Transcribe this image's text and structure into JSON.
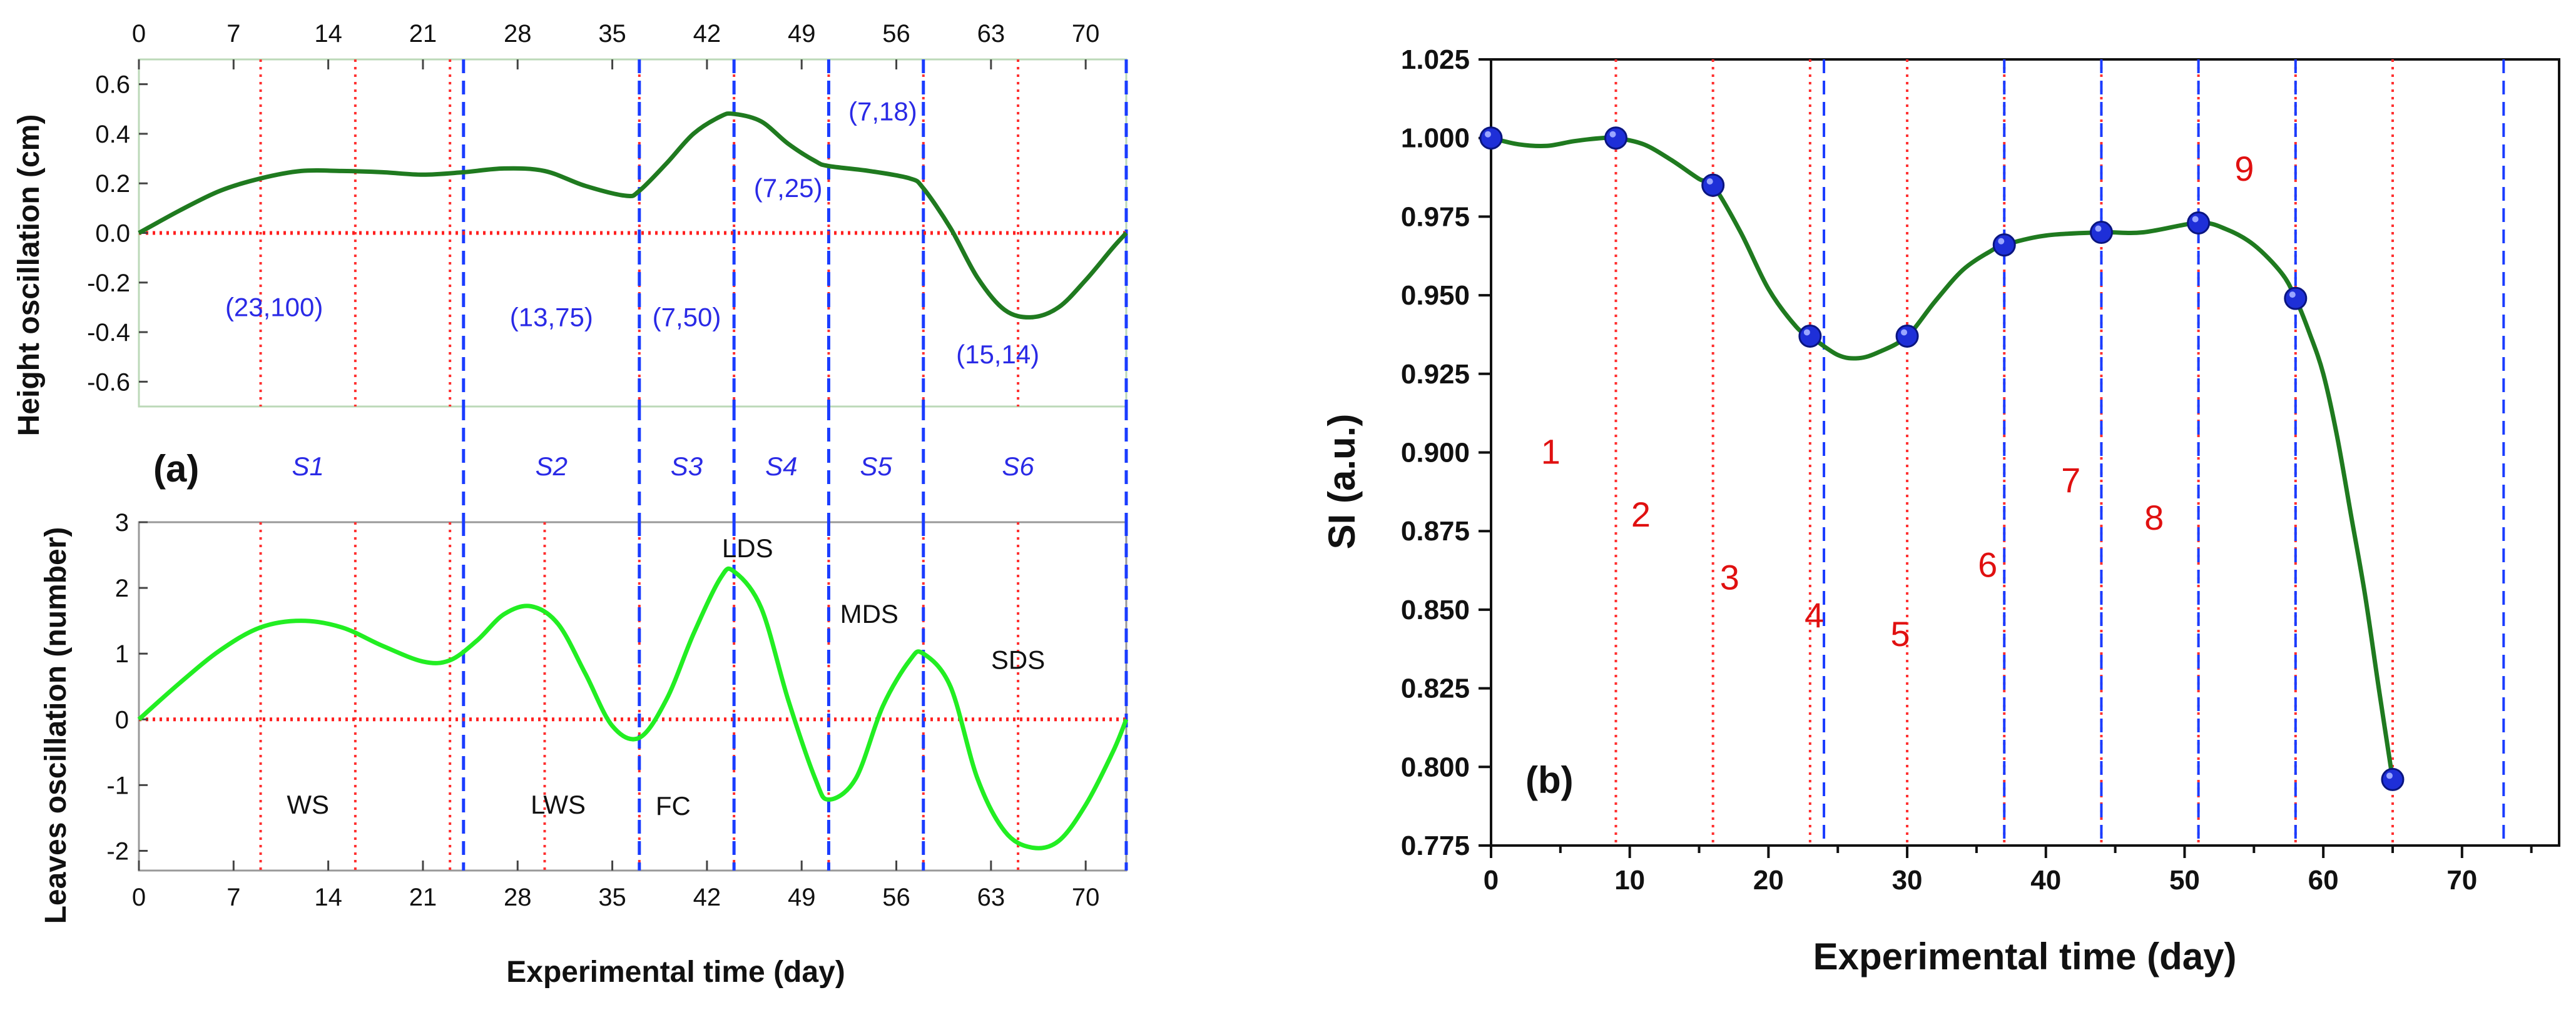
{
  "chart_data": [
    {
      "id": "height",
      "type": "line",
      "panel": "(a)",
      "ylabel": "Height oscillation (cm)",
      "xlabel": "",
      "xlim": [
        0,
        73
      ],
      "ylim": [
        -0.7,
        0.7
      ],
      "top_xticks": [
        0,
        7,
        14,
        21,
        28,
        35,
        42,
        49,
        56,
        63,
        70
      ],
      "yticks": [
        -0.6,
        -0.4,
        -0.2,
        0.0,
        0.2,
        0.4,
        0.6
      ],
      "ytick_labels": [
        "-0.6",
        "-0.4",
        "-0.2",
        "0.0",
        "0.2",
        "0.4",
        "0.6"
      ],
      "series": [
        {
          "name": "Height oscillation",
          "color": "#1f7a1f",
          "x": [
            0,
            3,
            6,
            9,
            12,
            15,
            18,
            21,
            24,
            27,
            30,
            33,
            36,
            37,
            39,
            41,
            43,
            44,
            46,
            48,
            50,
            51,
            54,
            57,
            58,
            60,
            62,
            64,
            66,
            68,
            70,
            72,
            73
          ],
          "y": [
            0.0,
            0.09,
            0.17,
            0.22,
            0.25,
            0.25,
            0.245,
            0.235,
            0.245,
            0.26,
            0.25,
            0.19,
            0.15,
            0.17,
            0.28,
            0.4,
            0.47,
            0.48,
            0.45,
            0.36,
            0.29,
            0.27,
            0.25,
            0.22,
            0.18,
            0.02,
            -0.18,
            -0.31,
            -0.34,
            -0.3,
            -0.19,
            -0.06,
            0.0
          ]
        }
      ],
      "vlines_red": [
        9,
        16,
        23,
        37,
        44,
        51,
        58,
        65
      ],
      "vlines_blue": [
        24,
        37,
        44,
        51,
        58,
        73
      ],
      "annotations": [
        {
          "text": "(23,100)",
          "x": 10,
          "y": -0.3
        },
        {
          "text": "(13,75)",
          "x": 30.5,
          "y": -0.34
        },
        {
          "text": "(7,50)",
          "x": 40.5,
          "y": -0.34
        },
        {
          "text": "(7,25)",
          "x": 48,
          "y": 0.18
        },
        {
          "text": "(7,18)",
          "x": 55,
          "y": 0.49
        },
        {
          "text": "(15,14)",
          "x": 63.5,
          "y": -0.49
        }
      ]
    },
    {
      "id": "leaves",
      "type": "line",
      "ylabel": "Leaves oscillation (number)",
      "xlabel": "Experimental time (day)",
      "xlim": [
        0,
        73
      ],
      "ylim": [
        -2.3,
        3
      ],
      "xticks": [
        0,
        7,
        14,
        21,
        28,
        35,
        42,
        49,
        56,
        63,
        70
      ],
      "yticks": [
        -2,
        -1,
        0,
        1,
        2,
        3
      ],
      "ytick_labels": [
        "-2",
        "-1",
        "0",
        "1",
        "2",
        "3"
      ],
      "series": [
        {
          "name": "Leaves oscillation",
          "color": "#22ee22",
          "x": [
            0,
            3,
            6,
            9,
            12,
            15,
            18,
            21,
            23,
            25,
            27,
            29,
            31,
            33,
            35,
            37,
            39,
            41,
            43,
            44,
            46,
            48,
            50,
            51,
            53,
            55,
            57,
            58,
            60,
            62,
            64,
            66,
            68,
            70,
            72,
            73
          ],
          "y": [
            0.0,
            0.55,
            1.05,
            1.4,
            1.5,
            1.4,
            1.12,
            0.88,
            0.9,
            1.2,
            1.6,
            1.72,
            1.45,
            0.7,
            -0.1,
            -0.28,
            0.3,
            1.3,
            2.15,
            2.25,
            1.7,
            0.3,
            -0.9,
            -1.22,
            -0.9,
            0.2,
            0.9,
            1.0,
            0.5,
            -0.9,
            -1.7,
            -1.95,
            -1.85,
            -1.3,
            -0.5,
            0.0
          ]
        }
      ],
      "vlines_red": [
        9,
        16,
        23,
        30,
        37,
        44,
        51,
        58,
        65
      ],
      "vlines_blue": [
        24,
        37,
        44,
        51,
        58,
        73
      ],
      "annotations": [
        {
          "text": "WS",
          "x": 12.5,
          "y": -1.3
        },
        {
          "text": "LWS",
          "x": 31,
          "y": -1.3
        },
        {
          "text": "FC",
          "x": 39.5,
          "y": -1.32
        },
        {
          "text": "LDS",
          "x": 45,
          "y": 2.6
        },
        {
          "text": "MDS",
          "x": 54,
          "y": 1.6
        },
        {
          "text": "SDS",
          "x": 65,
          "y": 0.9
        }
      ],
      "stage_labels": [
        {
          "text": "S1",
          "x": 12.5
        },
        {
          "text": "S2",
          "x": 30.5
        },
        {
          "text": "S3",
          "x": 40.5
        },
        {
          "text": "S4",
          "x": 47.5
        },
        {
          "text": "S5",
          "x": 54.5
        },
        {
          "text": "S6",
          "x": 65
        }
      ]
    },
    {
      "id": "si",
      "type": "line",
      "panel": "(b)",
      "ylabel": "SI (a.u.)",
      "xlabel": "Experimental time (day)",
      "xlim": [
        0,
        77
      ],
      "ylim": [
        0.775,
        1.025
      ],
      "xticks": [
        0,
        10,
        20,
        30,
        40,
        50,
        60,
        70
      ],
      "xtick_labels": [
        "0",
        "10",
        "20",
        "30",
        "40",
        "50",
        "60",
        "70"
      ],
      "yticks": [
        0.775,
        0.8,
        0.825,
        0.85,
        0.875,
        0.9,
        0.925,
        0.95,
        0.975,
        1.0,
        1.025
      ],
      "ytick_labels": [
        "0.775",
        "0.800",
        "0.825",
        "0.850",
        "0.875",
        "0.900",
        "0.925",
        "0.950",
        "0.975",
        "1.000",
        "1.025"
      ],
      "points": {
        "x": [
          0,
          9,
          16,
          23,
          30,
          37,
          44,
          51,
          58,
          65
        ],
        "y": [
          1.0,
          1.0,
          0.985,
          0.937,
          0.937,
          0.966,
          0.97,
          0.973,
          0.949,
          0.796
        ]
      },
      "series": [
        {
          "name": "SI",
          "color": "#1f7a1f",
          "x": [
            0,
            2,
            4,
            6,
            8,
            9,
            11,
            13,
            15,
            16,
            18,
            20,
            22,
            23,
            25,
            26.5,
            28,
            30,
            32,
            34,
            36,
            37,
            40,
            44,
            47,
            51,
            53,
            55,
            57,
            58,
            59,
            60,
            61,
            62,
            63,
            64,
            65
          ],
          "y": [
            1.0,
            0.998,
            0.9975,
            0.999,
            1.0,
            1.0,
            0.998,
            0.993,
            0.987,
            0.985,
            0.97,
            0.952,
            0.94,
            0.937,
            0.931,
            0.93,
            0.932,
            0.937,
            0.948,
            0.958,
            0.964,
            0.966,
            0.969,
            0.97,
            0.97,
            0.973,
            0.971,
            0.966,
            0.957,
            0.949,
            0.938,
            0.925,
            0.905,
            0.88,
            0.855,
            0.825,
            0.796
          ]
        }
      ],
      "vlines_red": [
        9,
        16,
        23,
        30,
        37,
        44,
        51,
        58,
        65
      ],
      "vlines_blue": [
        24,
        37,
        44,
        51,
        58,
        73
      ],
      "region_labels": [
        {
          "text": "1",
          "x": 4.3,
          "y": 0.9
        },
        {
          "text": "2",
          "x": 10.8,
          "y": 0.88
        },
        {
          "text": "3",
          "x": 17.2,
          "y": 0.86
        },
        {
          "text": "4",
          "x": 23.3,
          "y": 0.848
        },
        {
          "text": "5",
          "x": 29.5,
          "y": 0.842
        },
        {
          "text": "6",
          "x": 35.8,
          "y": 0.864
        },
        {
          "text": "7",
          "x": 41.8,
          "y": 0.891
        },
        {
          "text": "8",
          "x": 47.8,
          "y": 0.879
        },
        {
          "text": "9",
          "x": 54.3,
          "y": 0.99
        }
      ]
    }
  ]
}
